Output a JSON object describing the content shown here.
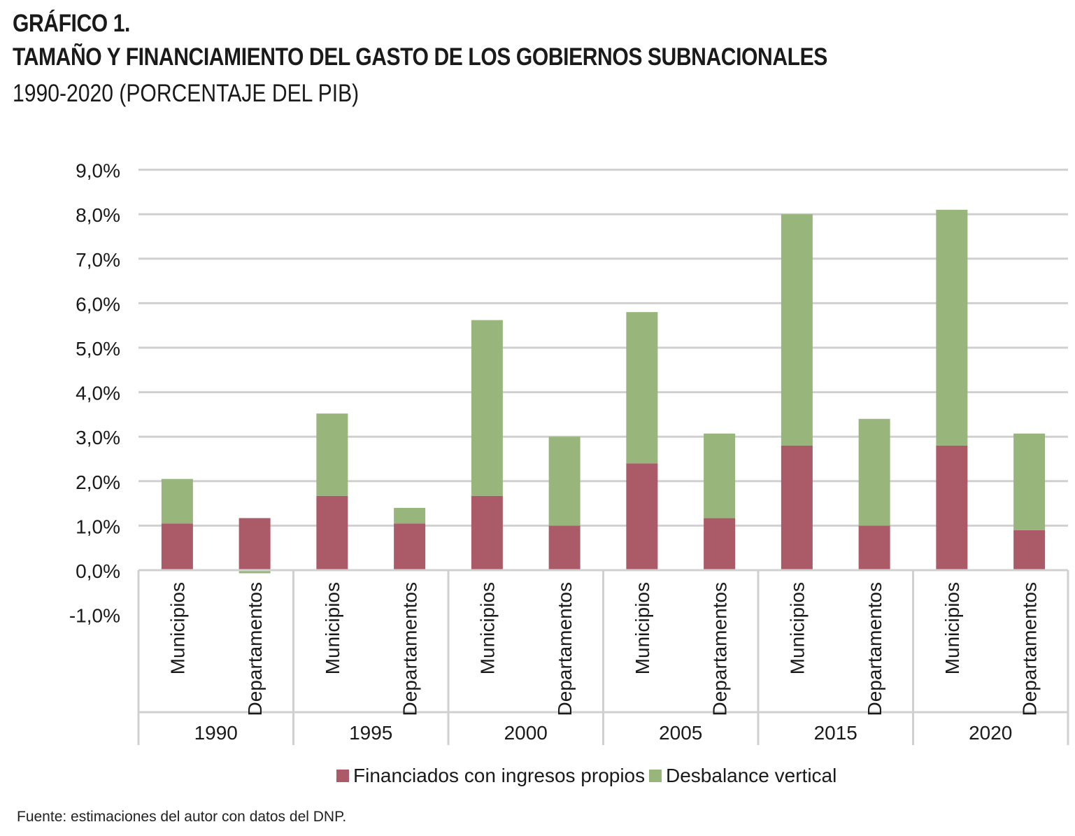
{
  "header": {
    "label": "GRÁFICO 1.",
    "title": "TAMAÑO Y FINANCIAMIENTO DEL GASTO DE LOS GOBIERNOS SUBNACIONALES",
    "subtitle": "1990-2020 (PORCENTAJE DEL PIB)"
  },
  "source": "Fuente: estimaciones del autor con datos del DNP.",
  "colors": {
    "propios": "#ab5b67",
    "desbalance": "#98b57c",
    "grid": "#d0d0d0"
  },
  "chart_data": {
    "type": "bar",
    "stacked": true,
    "groups": [
      "1990",
      "1995",
      "2000",
      "2005",
      "2015",
      "2020"
    ],
    "categories": [
      "Municipios",
      "Departamentos",
      "Municipios",
      "Departamentos",
      "Municipios",
      "Departamentos",
      "Municipios",
      "Departamentos",
      "Municipios",
      "Departamentos",
      "Municipios",
      "Departamentos"
    ],
    "series": [
      {
        "name": "Financiados con ingresos propios",
        "values": [
          1.05,
          1.17,
          1.67,
          1.05,
          1.67,
          1.0,
          2.4,
          1.17,
          2.8,
          1.0,
          2.8,
          0.9
        ]
      },
      {
        "name": "Desbalance vertical",
        "values": [
          1.0,
          -0.07,
          1.85,
          0.35,
          3.95,
          2.0,
          3.4,
          1.9,
          5.2,
          2.4,
          5.3,
          2.17
        ]
      }
    ],
    "ylim": [
      -1.0,
      9.0
    ],
    "yticks": [
      "9,0%",
      "8,0%",
      "7,0%",
      "6,0%",
      "5,0%",
      "4,0%",
      "3,0%",
      "2,0%",
      "1,0%",
      "0,0%",
      "-1,0%"
    ],
    "ytick_values": [
      9,
      8,
      7,
      6,
      5,
      4,
      3,
      2,
      1,
      0,
      -1
    ],
    "grid": true,
    "legend": "bottom"
  }
}
